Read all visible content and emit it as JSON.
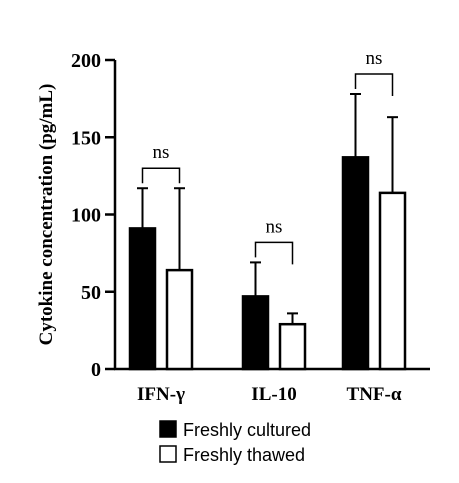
{
  "chart_data": {
    "type": "bar",
    "title": "",
    "xlabel": "",
    "ylabel": "Cytokine concentration (pg/mL)",
    "ylim": [
      0,
      200
    ],
    "yticks": [
      0,
      50,
      100,
      150,
      200
    ],
    "grid": false,
    "legend_position": "bottom-center",
    "categories": [
      "IFN-γ",
      "IL-10",
      "TNF-α"
    ],
    "series": [
      {
        "name": "Freshly cultured",
        "fill": "#000000",
        "values": [
          91,
          47,
          137
        ],
        "error_upper": [
          117,
          69,
          178
        ]
      },
      {
        "name": "Freshly thawed",
        "fill": "#ffffff",
        "values": [
          64,
          29,
          114
        ],
        "error_upper": [
          117,
          36,
          163
        ]
      }
    ],
    "annotations": [
      "ns",
      "ns",
      "ns"
    ]
  }
}
